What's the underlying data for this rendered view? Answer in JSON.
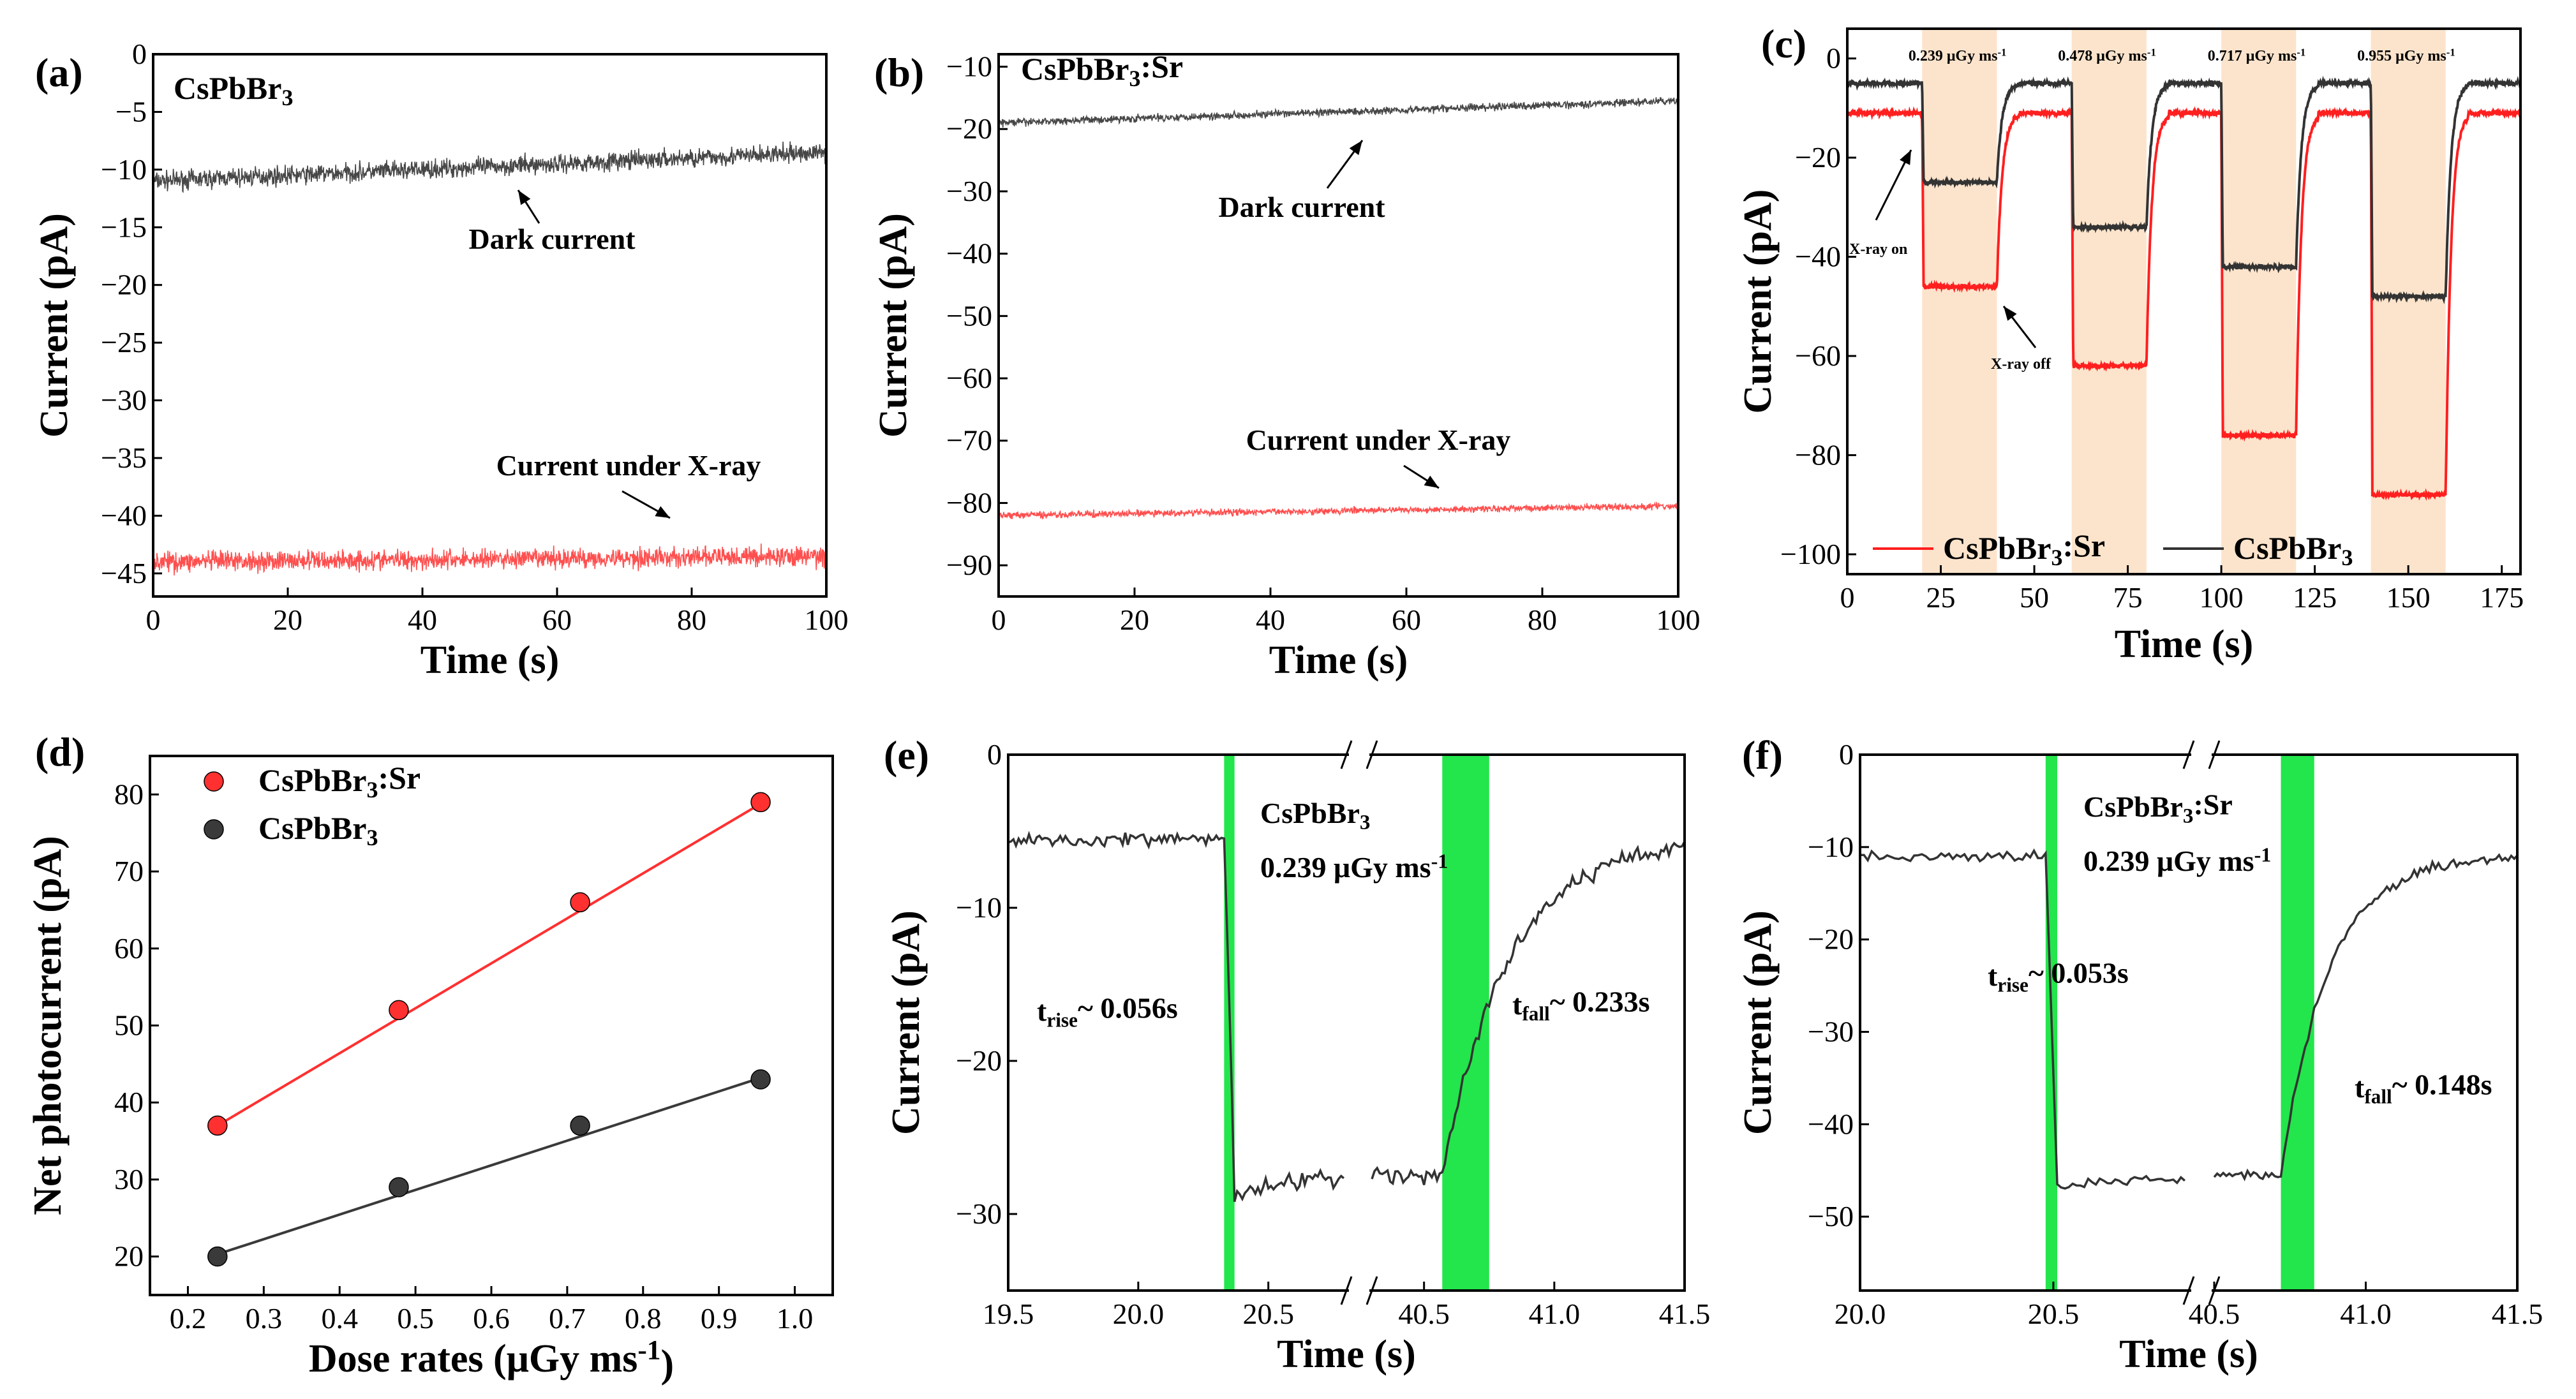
{
  "chart_data": [
    {
      "panel": "(a)",
      "type": "line",
      "sample": "CsPbBr3",
      "xlabel": "Time (s)",
      "ylabel": "Current (pA)",
      "xlim": [
        0,
        100
      ],
      "ylim": [
        -47,
        0
      ],
      "xticks": [
        0,
        20,
        40,
        60,
        80,
        100
      ],
      "xticklabels": [
        "0",
        "20",
        "40",
        "60",
        "80",
        "100"
      ],
      "yticks": [
        0,
        -5,
        -10,
        -15,
        -20,
        -25,
        -30,
        -35,
        -40,
        -45
      ],
      "yticklabels": [
        "0",
        "−5",
        "−10",
        "−15",
        "−20",
        "−25",
        "−30",
        "−35",
        "−40",
        "−45"
      ],
      "series": [
        {
          "name": "Dark current",
          "color": "#333333",
          "x": [
            0,
            100
          ],
          "y": [
            -11,
            -8.5
          ],
          "noise": 1.2
        },
        {
          "name": "Current under X-ray",
          "color": "#ff3c3c",
          "x": [
            0,
            100
          ],
          "y": [
            -44,
            -43.5
          ],
          "noise": 1.3
        }
      ],
      "annotations": [
        "Dark current",
        "Current under X-ray"
      ]
    },
    {
      "panel": "(b)",
      "type": "line",
      "sample": "CsPbBr3:Sr",
      "xlabel": "Time (s)",
      "ylabel": "Current (pA)",
      "xlim": [
        0,
        100
      ],
      "ylim": [
        -95,
        -8
      ],
      "xticks": [
        0,
        20,
        40,
        60,
        80,
        100
      ],
      "xticklabels": [
        "0",
        "20",
        "40",
        "60",
        "80",
        "100"
      ],
      "yticks": [
        -10,
        -20,
        -30,
        -40,
        -50,
        -60,
        -70,
        -80,
        -90
      ],
      "yticklabels": [
        "−10",
        "−20",
        "−30",
        "−40",
        "−50",
        "−60",
        "−70",
        "−80",
        "−90"
      ],
      "series": [
        {
          "name": "Dark current",
          "color": "#333333",
          "x": [
            0,
            100
          ],
          "y": [
            -19,
            -15.5
          ],
          "noise": 0.9
        },
        {
          "name": "Current under X-ray",
          "color": "#ff3c3c",
          "x": [
            0,
            100
          ],
          "y": [
            -82,
            -80.5
          ],
          "noise": 0.8
        }
      ],
      "annotations": [
        "Dark current",
        "Current under X-ray"
      ]
    },
    {
      "panel": "(c)",
      "type": "line",
      "xlabel": "Time (s)",
      "ylabel": "Current (pA)",
      "xlim": [
        0,
        180
      ],
      "ylim": [
        -104,
        6
      ],
      "xticks": [
        0,
        25,
        50,
        75,
        100,
        125,
        150,
        175
      ],
      "xticklabels": [
        "0",
        "25",
        "50",
        "75",
        "100",
        "125",
        "150",
        "175"
      ],
      "yticks": [
        0,
        -20,
        -40,
        -60,
        -80,
        -100
      ],
      "yticklabels": [
        "0",
        "−20",
        "−40",
        "−60",
        "−80",
        "−100"
      ],
      "shaded_regions": [
        [
          20,
          40
        ],
        [
          60,
          80
        ],
        [
          100,
          120
        ],
        [
          140,
          160
        ]
      ],
      "shade_color": "#fce4cc",
      "dose_labels": [
        "0.239 μGy ms",
        "0.478 μGy ms",
        "0.717 μGy ms",
        "0.955 μGy ms"
      ],
      "dose_exp": "-1",
      "baselines": {
        "CsPbBr3:Sr": -11,
        "CsPbBr3": -5
      },
      "levels": {
        "CsPbBr3:Sr": [
          -46,
          -62,
          -76,
          -88
        ],
        "CsPbBr3": [
          -25,
          -34,
          -42,
          -48
        ]
      },
      "series": [
        {
          "name": "CsPbBr3:Sr",
          "color": "#ff1f1f"
        },
        {
          "name": "CsPbBr3",
          "color": "#333333"
        }
      ],
      "annotations": [
        "X-ray on",
        "X-ray off"
      ],
      "legend": {
        "position": "bottom",
        "entries": [
          {
            "base": "CsPbBr",
            "sub": "3",
            "tail": ":Sr"
          },
          {
            "base": "CsPbBr",
            "sub": "3",
            "tail": ""
          }
        ]
      }
    },
    {
      "panel": "(d)",
      "type": "scatter",
      "xlabel": "Dose rates (μGy ms",
      "xlabel_exp": "-1",
      "xlabel_tail": ")",
      "ylabel": "Net photocurrent (pA)",
      "xlim": [
        0.15,
        1.05
      ],
      "ylim": [
        15,
        85
      ],
      "xticks": [
        0.2,
        0.3,
        0.4,
        0.5,
        0.6,
        0.7,
        0.8,
        0.9,
        1.0
      ],
      "xticklabels": [
        "0.2",
        "0.3",
        "0.4",
        "0.5",
        "0.6",
        "0.7",
        "0.8",
        "0.9",
        "1.0"
      ],
      "yticks": [
        20,
        30,
        40,
        50,
        60,
        70,
        80
      ],
      "yticklabels": [
        "20",
        "30",
        "40",
        "50",
        "60",
        "70",
        "80"
      ],
      "series": [
        {
          "name": "CsPbBr3:Sr",
          "color": "#ff3030",
          "x": [
            0.239,
            0.478,
            0.717,
            0.955
          ],
          "y": [
            37,
            52,
            66,
            79
          ]
        },
        {
          "name": "CsPbBr3",
          "color": "#3a3a3a",
          "x": [
            0.239,
            0.478,
            0.717,
            0.955
          ],
          "y": [
            20,
            29,
            37,
            43
          ]
        }
      ],
      "fit_lines": [
        {
          "series": "CsPbBr3:Sr",
          "x": [
            0.239,
            0.955
          ],
          "y": [
            37.0,
            78.8
          ]
        },
        {
          "series": "CsPbBr3",
          "x": [
            0.239,
            0.955
          ],
          "y": [
            20.3,
            43.2
          ]
        }
      ],
      "legend": {
        "position": "top-left",
        "entries": [
          {
            "base": "CsPbBr",
            "sub": "3",
            "tail": ":Sr"
          },
          {
            "base": "CsPbBr",
            "sub": "3",
            "tail": ""
          }
        ]
      }
    },
    {
      "panel": "(e)",
      "type": "line",
      "sample": "CsPbBr",
      "sample_sub": "3",
      "dose": "0.239 μGy ms",
      "dose_exp": "-1",
      "xlabel": "Time (s)",
      "ylabel": "Current (pA)",
      "ylim": [
        -35,
        0
      ],
      "yticks": [
        0,
        -10,
        -20,
        -30
      ],
      "yticklabels": [
        "0",
        "−10",
        "−20",
        "−30"
      ],
      "broken_x": {
        "left": [
          19.5,
          20.8
        ],
        "right": [
          40.3,
          41.5
        ]
      },
      "xticks_left": [
        19.5,
        20.0,
        20.5
      ],
      "xticklabels_left": [
        "19.5",
        "20.0",
        "20.5"
      ],
      "xticks_right": [
        40.5,
        41.0,
        41.5
      ],
      "xticklabels_right": [
        "40.5",
        "41.0",
        "41.5"
      ],
      "rise_band": [
        20.33,
        20.37
      ],
      "fall_band": [
        40.57,
        40.75
      ],
      "levels": {
        "off": -5.5,
        "on": -27.5
      },
      "rise_time": {
        "label": "t",
        "sub": "rise",
        "value": "~ 0.056s"
      },
      "fall_time": {
        "label": "t",
        "sub": "fall",
        "value": "~ 0.233s"
      },
      "series": [
        {
          "name": "CsPbBr3",
          "color": "#333333"
        }
      ]
    },
    {
      "panel": "(f)",
      "type": "line",
      "sample": "CsPbBr",
      "sample_sub": "3",
      "sample_tail": ":Sr",
      "dose": "0.239 μGy ms",
      "dose_exp": "-1",
      "xlabel": "Time (s)",
      "ylabel": "Current (pA)",
      "ylim": [
        -58,
        0
      ],
      "yticks": [
        0,
        -10,
        -20,
        -30,
        -40,
        -50
      ],
      "yticklabels": [
        "0",
        "−10",
        "−20",
        "−30",
        "−40",
        "−50"
      ],
      "broken_x": {
        "left": [
          20.0,
          20.85
        ],
        "right": [
          40.5,
          41.5
        ]
      },
      "xticks_left": [
        20.0,
        20.5
      ],
      "xticklabels_left": [
        "20.0",
        "20.5"
      ],
      "xticks_right": [
        40.5,
        41.0,
        41.5
      ],
      "xticklabels_right": [
        "40.5",
        "41.0",
        "41.5"
      ],
      "rise_band": [
        20.48,
        20.51
      ],
      "fall_band": [
        40.72,
        40.83
      ],
      "levels": {
        "off": -11,
        "on": -45.5
      },
      "rise_time": {
        "label": "t",
        "sub": "rise",
        "value": "~ 0.053s"
      },
      "fall_time": {
        "label": "t",
        "sub": "fall",
        "value": "~ 0.148s"
      },
      "series": [
        {
          "name": "CsPbBr3:Sr",
          "color": "#333333"
        }
      ]
    }
  ]
}
